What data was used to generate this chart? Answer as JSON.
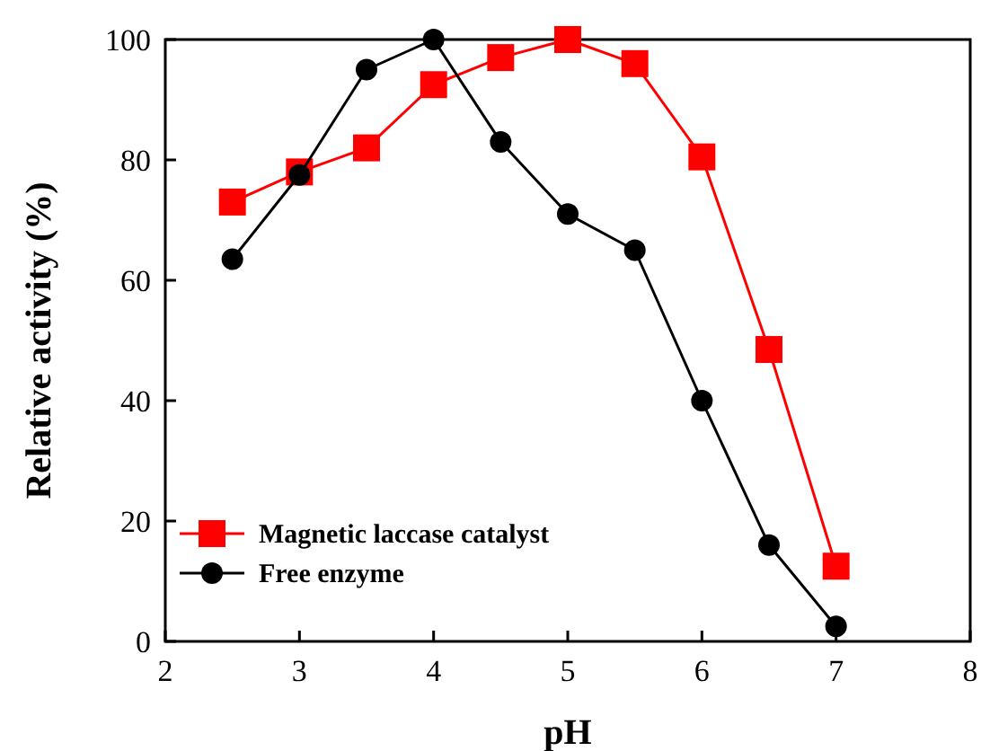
{
  "chart_data": {
    "type": "line",
    "xlabel": "pH",
    "ylabel": "Relative activity (%)",
    "x": [
      2.5,
      3,
      3.5,
      4,
      4.5,
      5,
      5.5,
      6,
      6.5,
      7
    ],
    "series": [
      {
        "name": "Magnetic laccase catalyst",
        "color": "#ff0000",
        "marker": "square",
        "values": [
          73,
          78,
          82,
          92.5,
          97,
          100,
          96,
          80.5,
          48.5,
          12.5
        ]
      },
      {
        "name": "Free enzyme",
        "color": "#000000",
        "marker": "circle",
        "values": [
          63.5,
          77.5,
          95,
          100,
          83,
          71,
          65,
          40,
          16,
          2.5
        ]
      }
    ],
    "xlim": [
      2,
      8
    ],
    "xticks": [
      2,
      3,
      4,
      5,
      6,
      7,
      8
    ],
    "ylim": [
      0,
      100
    ],
    "yticks": [
      0,
      20,
      40,
      60,
      80,
      100
    ],
    "legend": "bottom left",
    "grid": false,
    "line_style": "solid"
  }
}
